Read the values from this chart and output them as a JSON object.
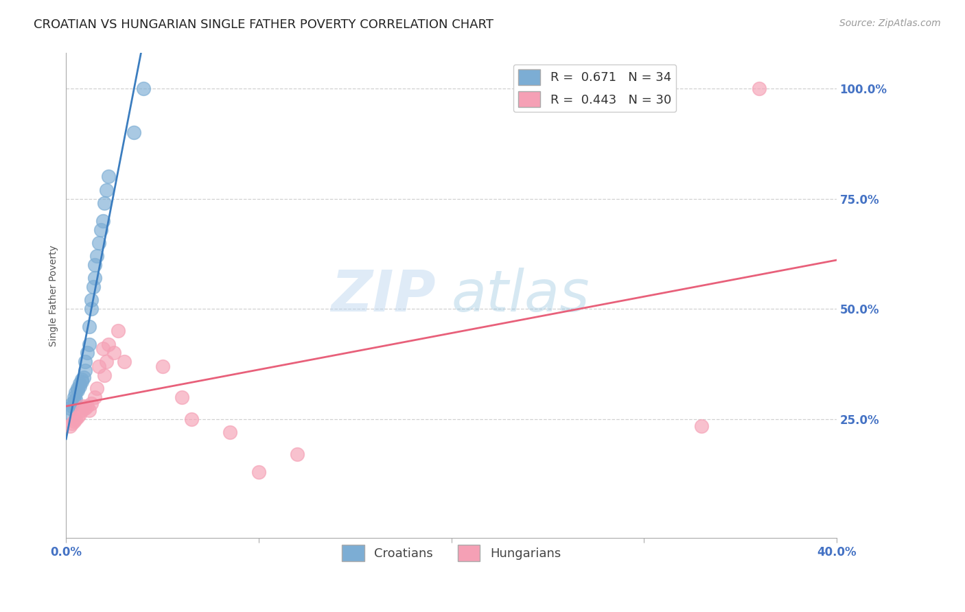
{
  "title": "CROATIAN VS HUNGARIAN SINGLE FATHER POVERTY CORRELATION CHART",
  "source": "Source: ZipAtlas.com",
  "ylabel_label": "Single Father Poverty",
  "xlim": [
    0.0,
    0.4
  ],
  "ylim": [
    -0.02,
    1.08
  ],
  "croatian_color": "#7cadd4",
  "hungarian_color": "#f5a0b5",
  "croatian_line_color": "#3b7dbf",
  "hungarian_line_color": "#e8607a",
  "legend_r_croatian": "R =  0.671",
  "legend_n_croatian": "N = 34",
  "legend_r_hungarian": "R =  0.443",
  "legend_n_hungarian": "N = 30",
  "watermark_zip": "ZIP",
  "watermark_atlas": "atlas",
  "croatian_x": [
    0.001,
    0.002,
    0.003,
    0.003,
    0.004,
    0.004,
    0.005,
    0.005,
    0.006,
    0.006,
    0.007,
    0.007,
    0.008,
    0.008,
    0.009,
    0.01,
    0.01,
    0.011,
    0.012,
    0.012,
    0.013,
    0.013,
    0.014,
    0.015,
    0.015,
    0.016,
    0.017,
    0.018,
    0.019,
    0.02,
    0.021,
    0.022,
    0.035,
    0.04
  ],
  "croatian_y": [
    0.265,
    0.275,
    0.28,
    0.285,
    0.29,
    0.3,
    0.295,
    0.31,
    0.315,
    0.32,
    0.325,
    0.33,
    0.335,
    0.34,
    0.345,
    0.36,
    0.38,
    0.4,
    0.42,
    0.46,
    0.5,
    0.52,
    0.55,
    0.57,
    0.6,
    0.62,
    0.65,
    0.68,
    0.7,
    0.74,
    0.77,
    0.8,
    0.9,
    1.0
  ],
  "hungarian_x": [
    0.002,
    0.003,
    0.004,
    0.005,
    0.006,
    0.007,
    0.008,
    0.009,
    0.01,
    0.011,
    0.012,
    0.013,
    0.015,
    0.016,
    0.017,
    0.019,
    0.02,
    0.021,
    0.022,
    0.025,
    0.027,
    0.03,
    0.05,
    0.06,
    0.065,
    0.085,
    0.1,
    0.12,
    0.33,
    0.36
  ],
  "hungarian_y": [
    0.235,
    0.24,
    0.245,
    0.25,
    0.255,
    0.26,
    0.27,
    0.28,
    0.275,
    0.28,
    0.27,
    0.285,
    0.3,
    0.32,
    0.37,
    0.41,
    0.35,
    0.38,
    0.42,
    0.4,
    0.45,
    0.38,
    0.37,
    0.3,
    0.25,
    0.22,
    0.13,
    0.17,
    0.235,
    1.0
  ],
  "background_color": "#ffffff",
  "grid_color": "#d0d0d0",
  "tick_color": "#4472c4",
  "axis_color": "#aaaaaa",
  "title_fontsize": 13,
  "source_fontsize": 10,
  "label_fontsize": 10,
  "tick_fontsize": 12,
  "legend_fontsize": 13,
  "watermark_fontsize_zip": 60,
  "watermark_fontsize_atlas": 60
}
